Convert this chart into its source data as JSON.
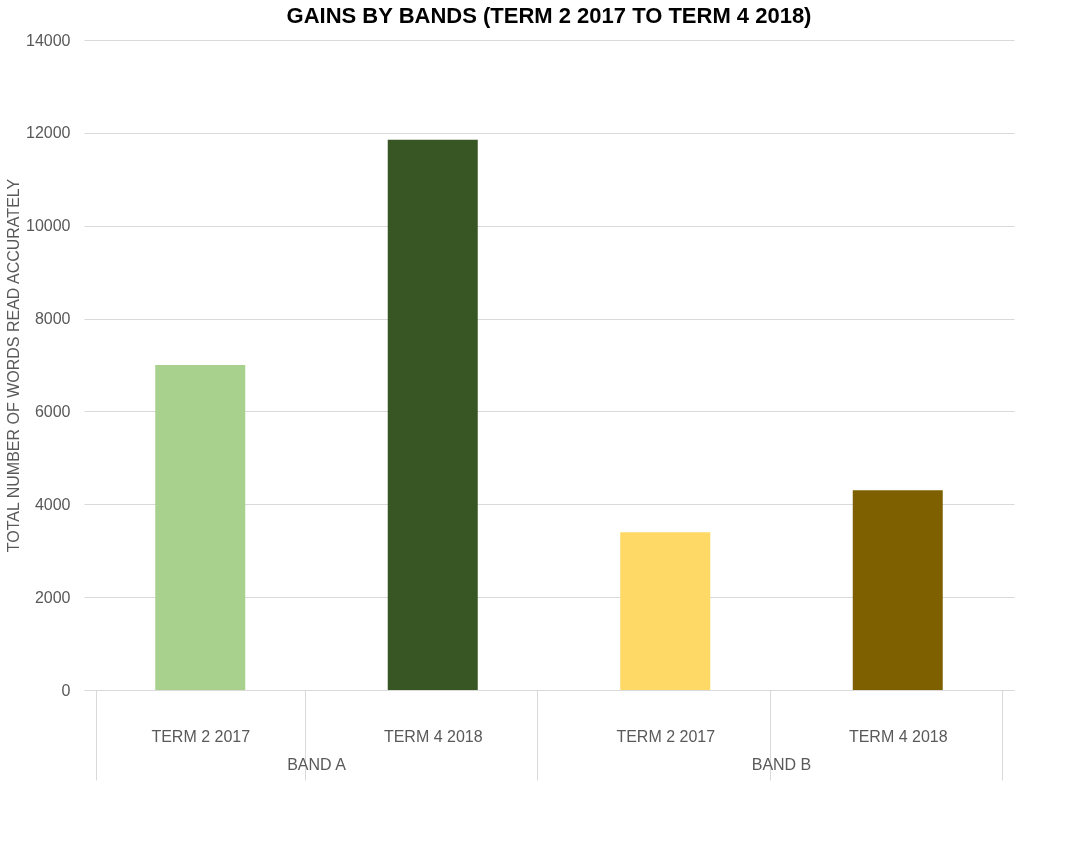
{
  "chart_data": {
    "type": "bar",
    "title": "GAINS BY BANDS (TERM 2 2017 TO TERM 4 2018)",
    "ylabel": "TOTAL NUMBER  OF WORDS READ  ACCURATELY",
    "categories": [
      "TERM 2 2017",
      "TERM 4 2018",
      "TERM 2 2017",
      "TERM 4 2018"
    ],
    "values": [
      7000,
      11850,
      3400,
      4300
    ],
    "colors": [
      "#a9d18e",
      "#375623",
      "#ffd966",
      "#7f6000"
    ],
    "annotations": [
      "BAND A",
      "BAND B"
    ],
    "ylim": [
      0,
      14000
    ],
    "yticks": [
      0,
      2000,
      4000,
      6000,
      8000,
      10000,
      12000,
      14000
    ],
    "grid": "y"
  }
}
